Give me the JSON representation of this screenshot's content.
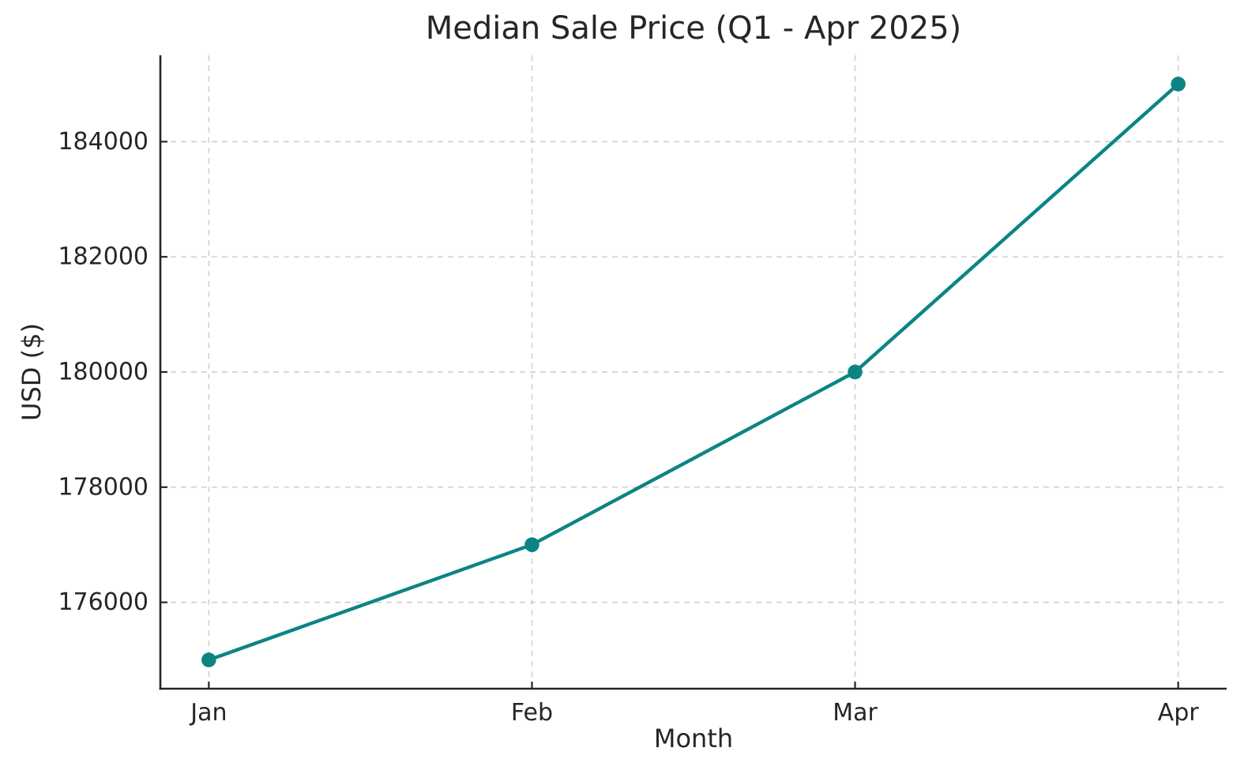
{
  "chart_data": {
    "type": "line",
    "title": "Median Sale Price (Q1 - Apr 2025)",
    "xlabel": "Month",
    "ylabel": "USD ($)",
    "categories": [
      "Jan",
      "Feb",
      "Mar",
      "Apr"
    ],
    "series": [
      {
        "name": "Median Sale Price",
        "values": [
          175000,
          177000,
          180000,
          185000
        ]
      }
    ],
    "yticks": [
      176000,
      178000,
      180000,
      182000,
      184000
    ],
    "ytick_labels": [
      "176000",
      "178000",
      "180000",
      "182000",
      "184000"
    ],
    "ylim": [
      174500,
      185500
    ],
    "xlim": [
      -0.15,
      3.15
    ],
    "grid": true,
    "grid_style": "dashed",
    "legend": "none",
    "line_color": "#0d8484",
    "marker": "circle",
    "grid_color": "#cccccc",
    "axis_color": "#262626",
    "text_color": "#262626",
    "background": "#ffffff"
  }
}
